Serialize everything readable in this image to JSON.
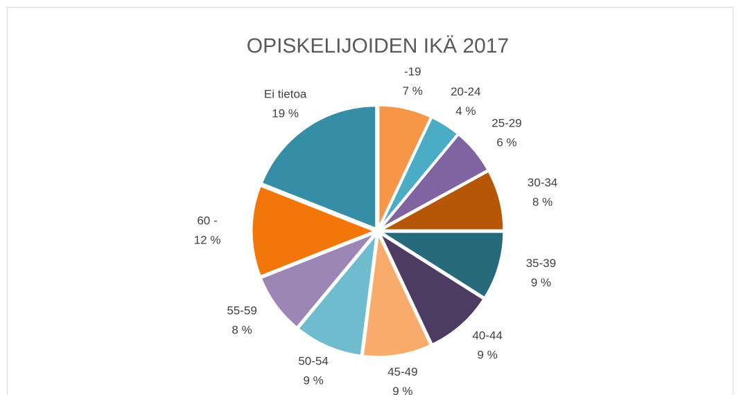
{
  "chart_data": {
    "type": "pie",
    "title": "OPISKELIJOIDEN IKÄ 2017",
    "categories": [
      "-19",
      "20-24",
      "25-29",
      "30-34",
      "35-39",
      "40-44",
      "45-49",
      "50-54",
      "55-59",
      "60 -",
      "Ei tietoa"
    ],
    "values": [
      7,
      4,
      6,
      8,
      9,
      9,
      9,
      9,
      8,
      12,
      19
    ],
    "value_labels": [
      "7 %",
      "4 %",
      "6 %",
      "8 %",
      "9 %",
      "9 %",
      "9 %",
      "9 %",
      "8 %",
      "12 %",
      "19 %"
    ],
    "colors": [
      "#f79646",
      "#4bacc6",
      "#8064a2",
      "#b65708",
      "#276a7c",
      "#4d3b62",
      "#f9ab6b",
      "#70bccf",
      "#9c86b6",
      "#f2760a",
      "#358ea5"
    ]
  }
}
